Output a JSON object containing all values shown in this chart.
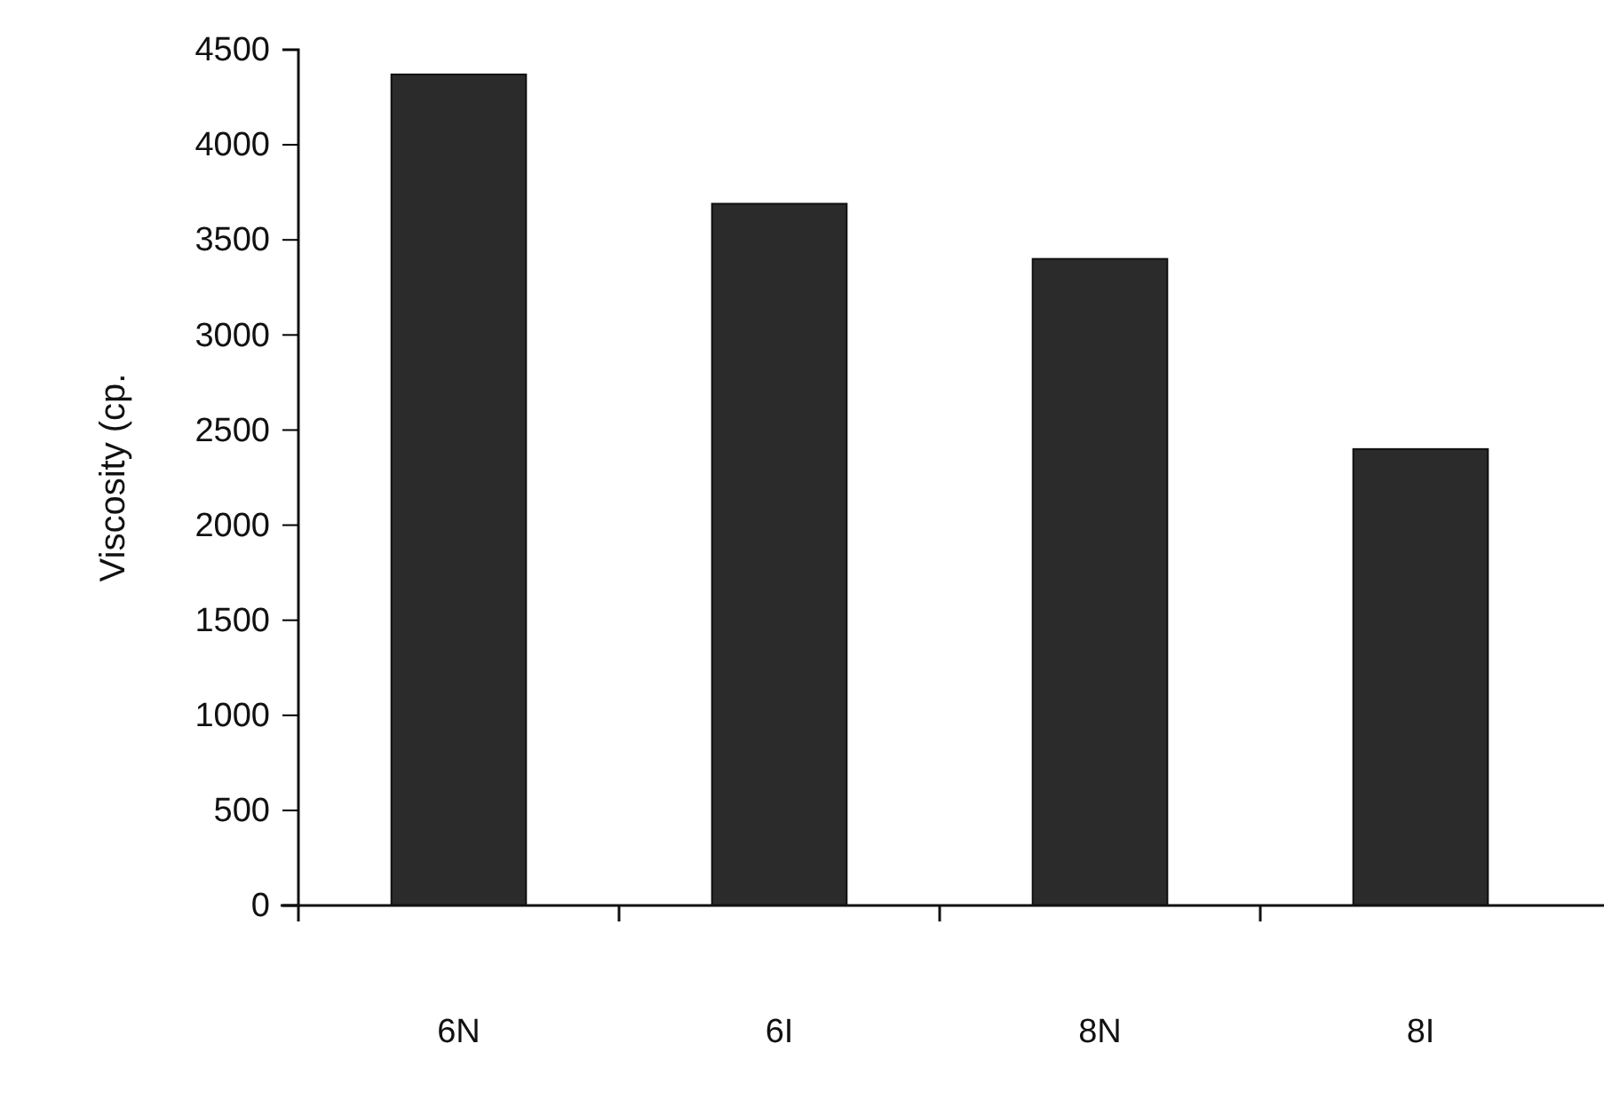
{
  "chart_data": {
    "type": "bar",
    "ylabel": "Viscosity (cp.",
    "categories": [
      "6N",
      "6I",
      "8N",
      "8I"
    ],
    "values": [
      4370,
      3690,
      3400,
      2400
    ],
    "color": "#2b2b2b",
    "ylim": [
      0,
      4500
    ],
    "yticks": [
      0,
      500,
      1000,
      1500,
      2000,
      2500,
      3000,
      3500,
      4000,
      4500
    ],
    "grid": false
  }
}
